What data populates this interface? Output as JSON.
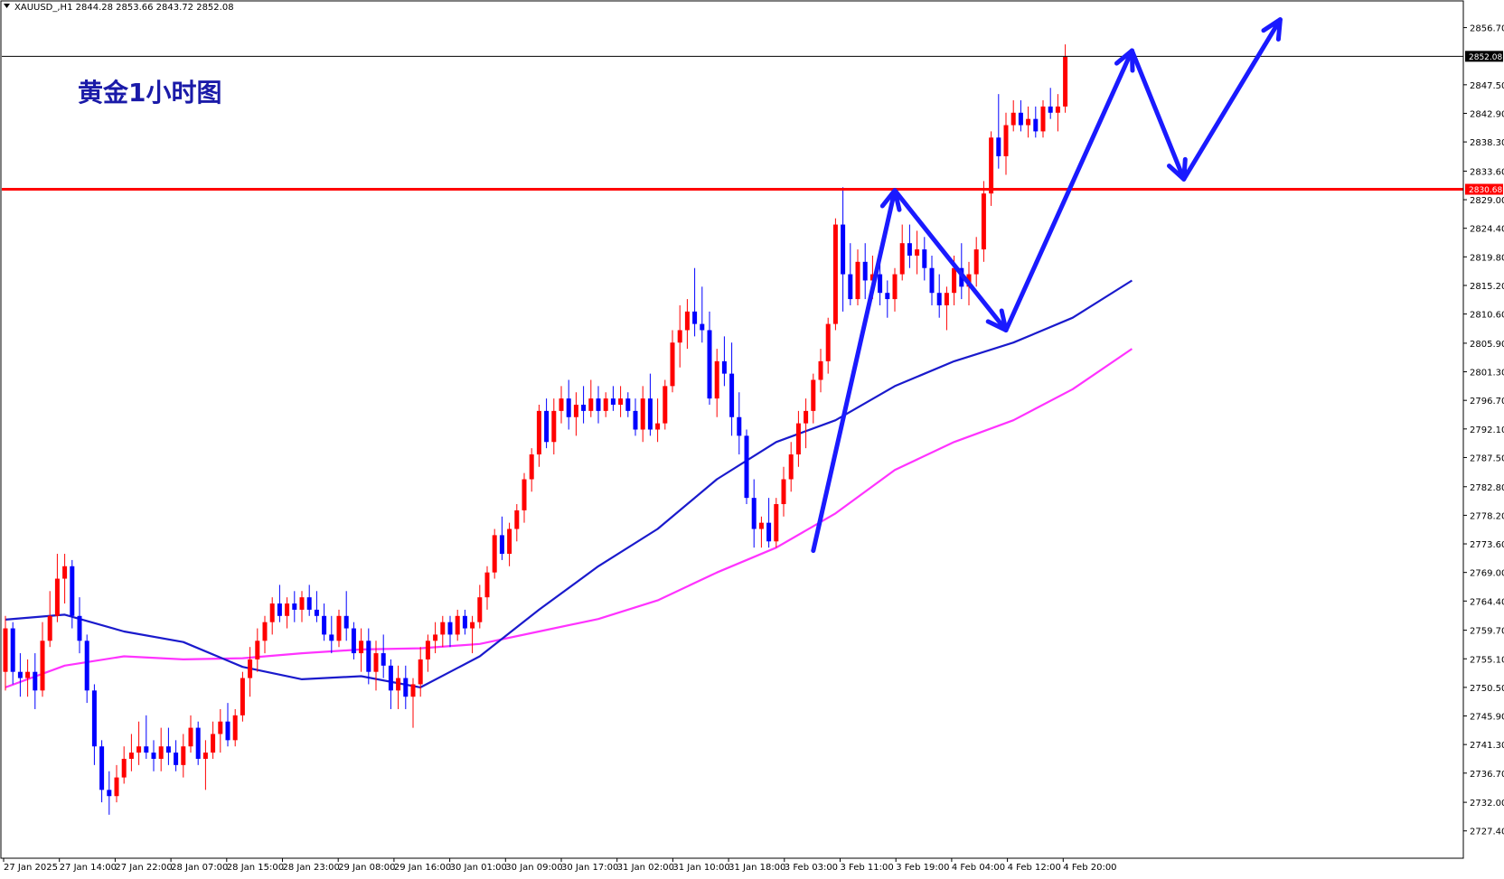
{
  "header": {
    "symbol_line": "XAUUSD_,H1  2844.28 2853.66 2843.72 2852.08",
    "menu_icon": "triangle-down-icon"
  },
  "chart_data": {
    "type": "candlestick",
    "title": "黄金1小时图",
    "ylim": [
      2723.0,
      2861.0
    ],
    "price_ticks": [
      "2856.70",
      "2852.08",
      "2847.50",
      "2842.90",
      "2838.30",
      "2833.60",
      "2830.68",
      "2829.00",
      "2824.40",
      "2819.80",
      "2815.20",
      "2810.60",
      "2805.90",
      "2801.30",
      "2796.70",
      "2792.10",
      "2787.50",
      "2782.80",
      "2778.20",
      "2773.60",
      "2769.00",
      "2764.40",
      "2759.70",
      "2755.10",
      "2750.50",
      "2745.90",
      "2741.30",
      "2736.70",
      "2732.00",
      "2727.40"
    ],
    "time_labels": [
      "27 Jan 2025",
      "27 Jan 14:00",
      "27 Jan 22:00",
      "28 Jan 07:00",
      "28 Jan 15:00",
      "28 Jan 23:00",
      "29 Jan 08:00",
      "29 Jan 16:00",
      "30 Jan 01:00",
      "30 Jan 09:00",
      "30 Jan 17:00",
      "31 Jan 02:00",
      "31 Jan 10:00",
      "31 Jan 18:00",
      "3 Feb 03:00",
      "3 Feb 11:00",
      "3 Feb 19:00",
      "4 Feb 04:00",
      "4 Feb 12:00",
      "4 Feb 20:00"
    ],
    "current_price": {
      "label": "2852.08",
      "value": 2852.08,
      "color": "#000000"
    },
    "resistance": {
      "label": "2830.68",
      "value": 2830.68,
      "color": "#ff0000"
    },
    "colors": {
      "bull": "#ff0000",
      "bear": "#0000ff",
      "ma_fast": "#1a1acc",
      "ma_slow": "#ff33ff",
      "arrows": "#1a1aff",
      "grid": "none"
    },
    "candles": [
      [
        2753,
        2762,
        2750,
        2760
      ],
      [
        2760,
        2761,
        2751,
        2753
      ],
      [
        2753,
        2756,
        2749,
        2752
      ],
      [
        2752,
        2755,
        2749,
        2753
      ],
      [
        2753,
        2756,
        2747,
        2750
      ],
      [
        2750,
        2761,
        2749,
        2758
      ],
      [
        2758,
        2766,
        2757,
        2762
      ],
      [
        2762,
        2772,
        2761,
        2768
      ],
      [
        2768,
        2772,
        2764,
        2770
      ],
      [
        2770,
        2771,
        2760,
        2762
      ],
      [
        2762,
        2765,
        2756,
        2758
      ],
      [
        2758,
        2759,
        2748,
        2750
      ],
      [
        2750,
        2751,
        2738,
        2741
      ],
      [
        2741,
        2742,
        2732,
        2734
      ],
      [
        2734,
        2737,
        2730,
        2733
      ],
      [
        2733,
        2738,
        2732,
        2736
      ],
      [
        2736,
        2741,
        2735,
        2739
      ],
      [
        2739,
        2743,
        2737,
        2740
      ],
      [
        2740,
        2745,
        2738,
        2741
      ],
      [
        2741,
        2746,
        2739,
        2740
      ],
      [
        2740,
        2742,
        2737,
        2739
      ],
      [
        2739,
        2744,
        2737,
        2741
      ],
      [
        2741,
        2744,
        2738,
        2740
      ],
      [
        2740,
        2742,
        2737,
        2738
      ],
      [
        2738,
        2743,
        2736,
        2741
      ],
      [
        2741,
        2746,
        2740,
        2744
      ],
      [
        2744,
        2745,
        2738,
        2739
      ],
      [
        2739,
        2742,
        2734,
        2740
      ],
      [
        2740,
        2745,
        2739,
        2743
      ],
      [
        2743,
        2747,
        2740,
        2745
      ],
      [
        2745,
        2748,
        2741,
        2742
      ],
      [
        2742,
        2747,
        2741,
        2746
      ],
      [
        2746,
        2753,
        2745,
        2752
      ],
      [
        2752,
        2757,
        2749,
        2755
      ],
      [
        2755,
        2760,
        2753,
        2758
      ],
      [
        2758,
        2762,
        2756,
        2761
      ],
      [
        2761,
        2765,
        2759,
        2764
      ],
      [
        2764,
        2767,
        2761,
        2762
      ],
      [
        2762,
        2765,
        2760,
        2764
      ],
      [
        2764,
        2766,
        2761,
        2763
      ],
      [
        2763,
        2766,
        2761,
        2765
      ],
      [
        2765,
        2767,
        2762,
        2763
      ],
      [
        2763,
        2766,
        2761,
        2762
      ],
      [
        2762,
        2764,
        2758,
        2759
      ],
      [
        2759,
        2762,
        2756,
        2758
      ],
      [
        2758,
        2763,
        2757,
        2762
      ],
      [
        2762,
        2766,
        2758,
        2760
      ],
      [
        2760,
        2761,
        2755,
        2756
      ],
      [
        2756,
        2760,
        2753,
        2758
      ],
      [
        2758,
        2760,
        2751,
        2753
      ],
      [
        2753,
        2758,
        2750,
        2756
      ],
      [
        2756,
        2759,
        2752,
        2754
      ],
      [
        2754,
        2755,
        2747,
        2750
      ],
      [
        2750,
        2754,
        2747,
        2752
      ],
      [
        2752,
        2754,
        2747,
        2749
      ],
      [
        2749,
        2752,
        2744,
        2751
      ],
      [
        2751,
        2757,
        2749,
        2755
      ],
      [
        2755,
        2759,
        2753,
        2758
      ],
      [
        2758,
        2761,
        2756,
        2759
      ],
      [
        2759,
        2762,
        2757,
        2761
      ],
      [
        2761,
        2762,
        2757,
        2759
      ],
      [
        2759,
        2763,
        2758,
        2762
      ],
      [
        2762,
        2763,
        2759,
        2760
      ],
      [
        2760,
        2762,
        2756,
        2761
      ],
      [
        2761,
        2767,
        2760,
        2765
      ],
      [
        2765,
        2770,
        2763,
        2769
      ],
      [
        2769,
        2776,
        2768,
        2775
      ],
      [
        2775,
        2778,
        2771,
        2772
      ],
      [
        2772,
        2777,
        2770,
        2776
      ],
      [
        2776,
        2780,
        2774,
        2779
      ],
      [
        2779,
        2785,
        2777,
        2784
      ],
      [
        2784,
        2789,
        2782,
        2788
      ],
      [
        2788,
        2796,
        2786,
        2795
      ],
      [
        2795,
        2797,
        2789,
        2790
      ],
      [
        2790,
        2797,
        2788,
        2795
      ],
      [
        2795,
        2799,
        2793,
        2797
      ],
      [
        2797,
        2800,
        2792,
        2794
      ],
      [
        2794,
        2798,
        2791,
        2796
      ],
      [
        2796,
        2799,
        2793,
        2795
      ],
      [
        2795,
        2800,
        2794,
        2797
      ],
      [
        2797,
        2799,
        2793,
        2795
      ],
      [
        2795,
        2798,
        2794,
        2797
      ],
      [
        2797,
        2799,
        2795,
        2796
      ],
      [
        2796,
        2799,
        2794,
        2797
      ],
      [
        2797,
        2798,
        2794,
        2795
      ],
      [
        2795,
        2797,
        2791,
        2792
      ],
      [
        2792,
        2799,
        2790,
        2797
      ],
      [
        2797,
        2801,
        2791,
        2792
      ],
      [
        2792,
        2797,
        2790,
        2793
      ],
      [
        2793,
        2800,
        2792,
        2799
      ],
      [
        2799,
        2808,
        2798,
        2806
      ],
      [
        2806,
        2812,
        2802,
        2808
      ],
      [
        2808,
        2813,
        2805,
        2811
      ],
      [
        2811,
        2818,
        2807,
        2809
      ],
      [
        2809,
        2815,
        2806,
        2808
      ],
      [
        2808,
        2811,
        2796,
        2797
      ],
      [
        2797,
        2805,
        2794,
        2803
      ],
      [
        2803,
        2807,
        2799,
        2801
      ],
      [
        2801,
        2806,
        2791,
        2794
      ],
      [
        2794,
        2798,
        2788,
        2791
      ],
      [
        2791,
        2792,
        2780,
        2781
      ],
      [
        2781,
        2784,
        2773,
        2776
      ],
      [
        2776,
        2778,
        2773,
        2777
      ],
      [
        2777,
        2781,
        2773,
        2774
      ],
      [
        2774,
        2781,
        2773,
        2780
      ],
      [
        2780,
        2786,
        2778,
        2784
      ],
      [
        2784,
        2790,
        2782,
        2788
      ],
      [
        2788,
        2795,
        2786,
        2793
      ],
      [
        2793,
        2797,
        2789,
        2795
      ],
      [
        2795,
        2801,
        2793,
        2800
      ],
      [
        2800,
        2805,
        2798,
        2803
      ],
      [
        2803,
        2810,
        2801,
        2809
      ],
      [
        2809,
        2826,
        2808,
        2825
      ],
      [
        2825,
        2831,
        2811,
        2817
      ],
      [
        2817,
        2822,
        2812,
        2813
      ],
      [
        2813,
        2821,
        2812,
        2819
      ],
      [
        2819,
        2822,
        2813,
        2816
      ],
      [
        2816,
        2820,
        2813,
        2817
      ],
      [
        2817,
        2819,
        2812,
        2814
      ],
      [
        2814,
        2816,
        2810,
        2813
      ],
      [
        2813,
        2818,
        2811,
        2817
      ],
      [
        2817,
        2825,
        2816,
        2822
      ],
      [
        2822,
        2825,
        2818,
        2820
      ],
      [
        2820,
        2824,
        2817,
        2821
      ],
      [
        2821,
        2823,
        2816,
        2818
      ],
      [
        2818,
        2820,
        2812,
        2814
      ],
      [
        2814,
        2817,
        2810,
        2812
      ],
      [
        2812,
        2815,
        2808,
        2814
      ],
      [
        2814,
        2820,
        2812,
        2818
      ],
      [
        2818,
        2822,
        2813,
        2815
      ],
      [
        2815,
        2819,
        2812,
        2817
      ],
      [
        2817,
        2823,
        2815,
        2821
      ],
      [
        2821,
        2832,
        2819,
        2830
      ],
      [
        2830,
        2840,
        2828,
        2839
      ],
      [
        2839,
        2846,
        2834,
        2836
      ],
      [
        2836,
        2843,
        2833,
        2841
      ],
      [
        2841,
        2845,
        2840,
        2843
      ],
      [
        2843,
        2845,
        2840,
        2841
      ],
      [
        2841,
        2844,
        2839,
        2842
      ],
      [
        2842,
        2844,
        2839,
        2840
      ],
      [
        2840,
        2845,
        2839,
        2844
      ],
      [
        2844,
        2847,
        2842,
        2843
      ],
      [
        2843,
        2846,
        2840,
        2844
      ],
      [
        2844,
        2854,
        2843,
        2852
      ]
    ],
    "ma_fast": [
      [
        0,
        2761.4
      ],
      [
        8,
        2762.2
      ],
      [
        16,
        2759.5
      ],
      [
        24,
        2757.8
      ],
      [
        32,
        2753.8
      ],
      [
        40,
        2751.8
      ],
      [
        48,
        2752.3
      ],
      [
        56,
        2750.5
      ],
      [
        64,
        2755.5
      ],
      [
        72,
        2763.0
      ],
      [
        80,
        2770.0
      ],
      [
        88,
        2776.0
      ],
      [
        96,
        2784.0
      ],
      [
        104,
        2790.0
      ],
      [
        112,
        2793.5
      ],
      [
        120,
        2799.0
      ],
      [
        128,
        2803.0
      ],
      [
        136,
        2806.0
      ],
      [
        144,
        2810.0
      ],
      [
        152,
        2816.0
      ]
    ],
    "ma_slow": [
      [
        0,
        2750.5
      ],
      [
        8,
        2754.0
      ],
      [
        16,
        2755.5
      ],
      [
        24,
        2755.0
      ],
      [
        32,
        2755.2
      ],
      [
        40,
        2756.0
      ],
      [
        48,
        2756.6
      ],
      [
        56,
        2756.8
      ],
      [
        64,
        2757.5
      ],
      [
        72,
        2759.5
      ],
      [
        80,
        2761.5
      ],
      [
        88,
        2764.5
      ],
      [
        96,
        2769.0
      ],
      [
        104,
        2773.0
      ],
      [
        112,
        2778.5
      ],
      [
        120,
        2785.5
      ],
      [
        128,
        2790.0
      ],
      [
        136,
        2793.5
      ],
      [
        144,
        2798.5
      ],
      [
        152,
        2805.0
      ]
    ],
    "arrows": [
      {
        "name": "up-1",
        "points": [
          [
            109,
            2772.5
          ],
          [
            120,
            2830.5
          ]
        ]
      },
      {
        "name": "down-1",
        "points": [
          [
            120,
            2830.5
          ],
          [
            135,
            2808.0
          ]
        ]
      },
      {
        "name": "up-2",
        "points": [
          [
            135,
            2808.0
          ],
          [
            152,
            2853.0
          ]
        ]
      },
      {
        "name": "down-2",
        "points": [
          [
            152,
            2853.0
          ],
          [
            159,
            2832.3
          ]
        ]
      },
      {
        "name": "up-3",
        "points": [
          [
            159,
            2832.3
          ],
          [
            172,
            2858.0
          ]
        ]
      }
    ]
  }
}
